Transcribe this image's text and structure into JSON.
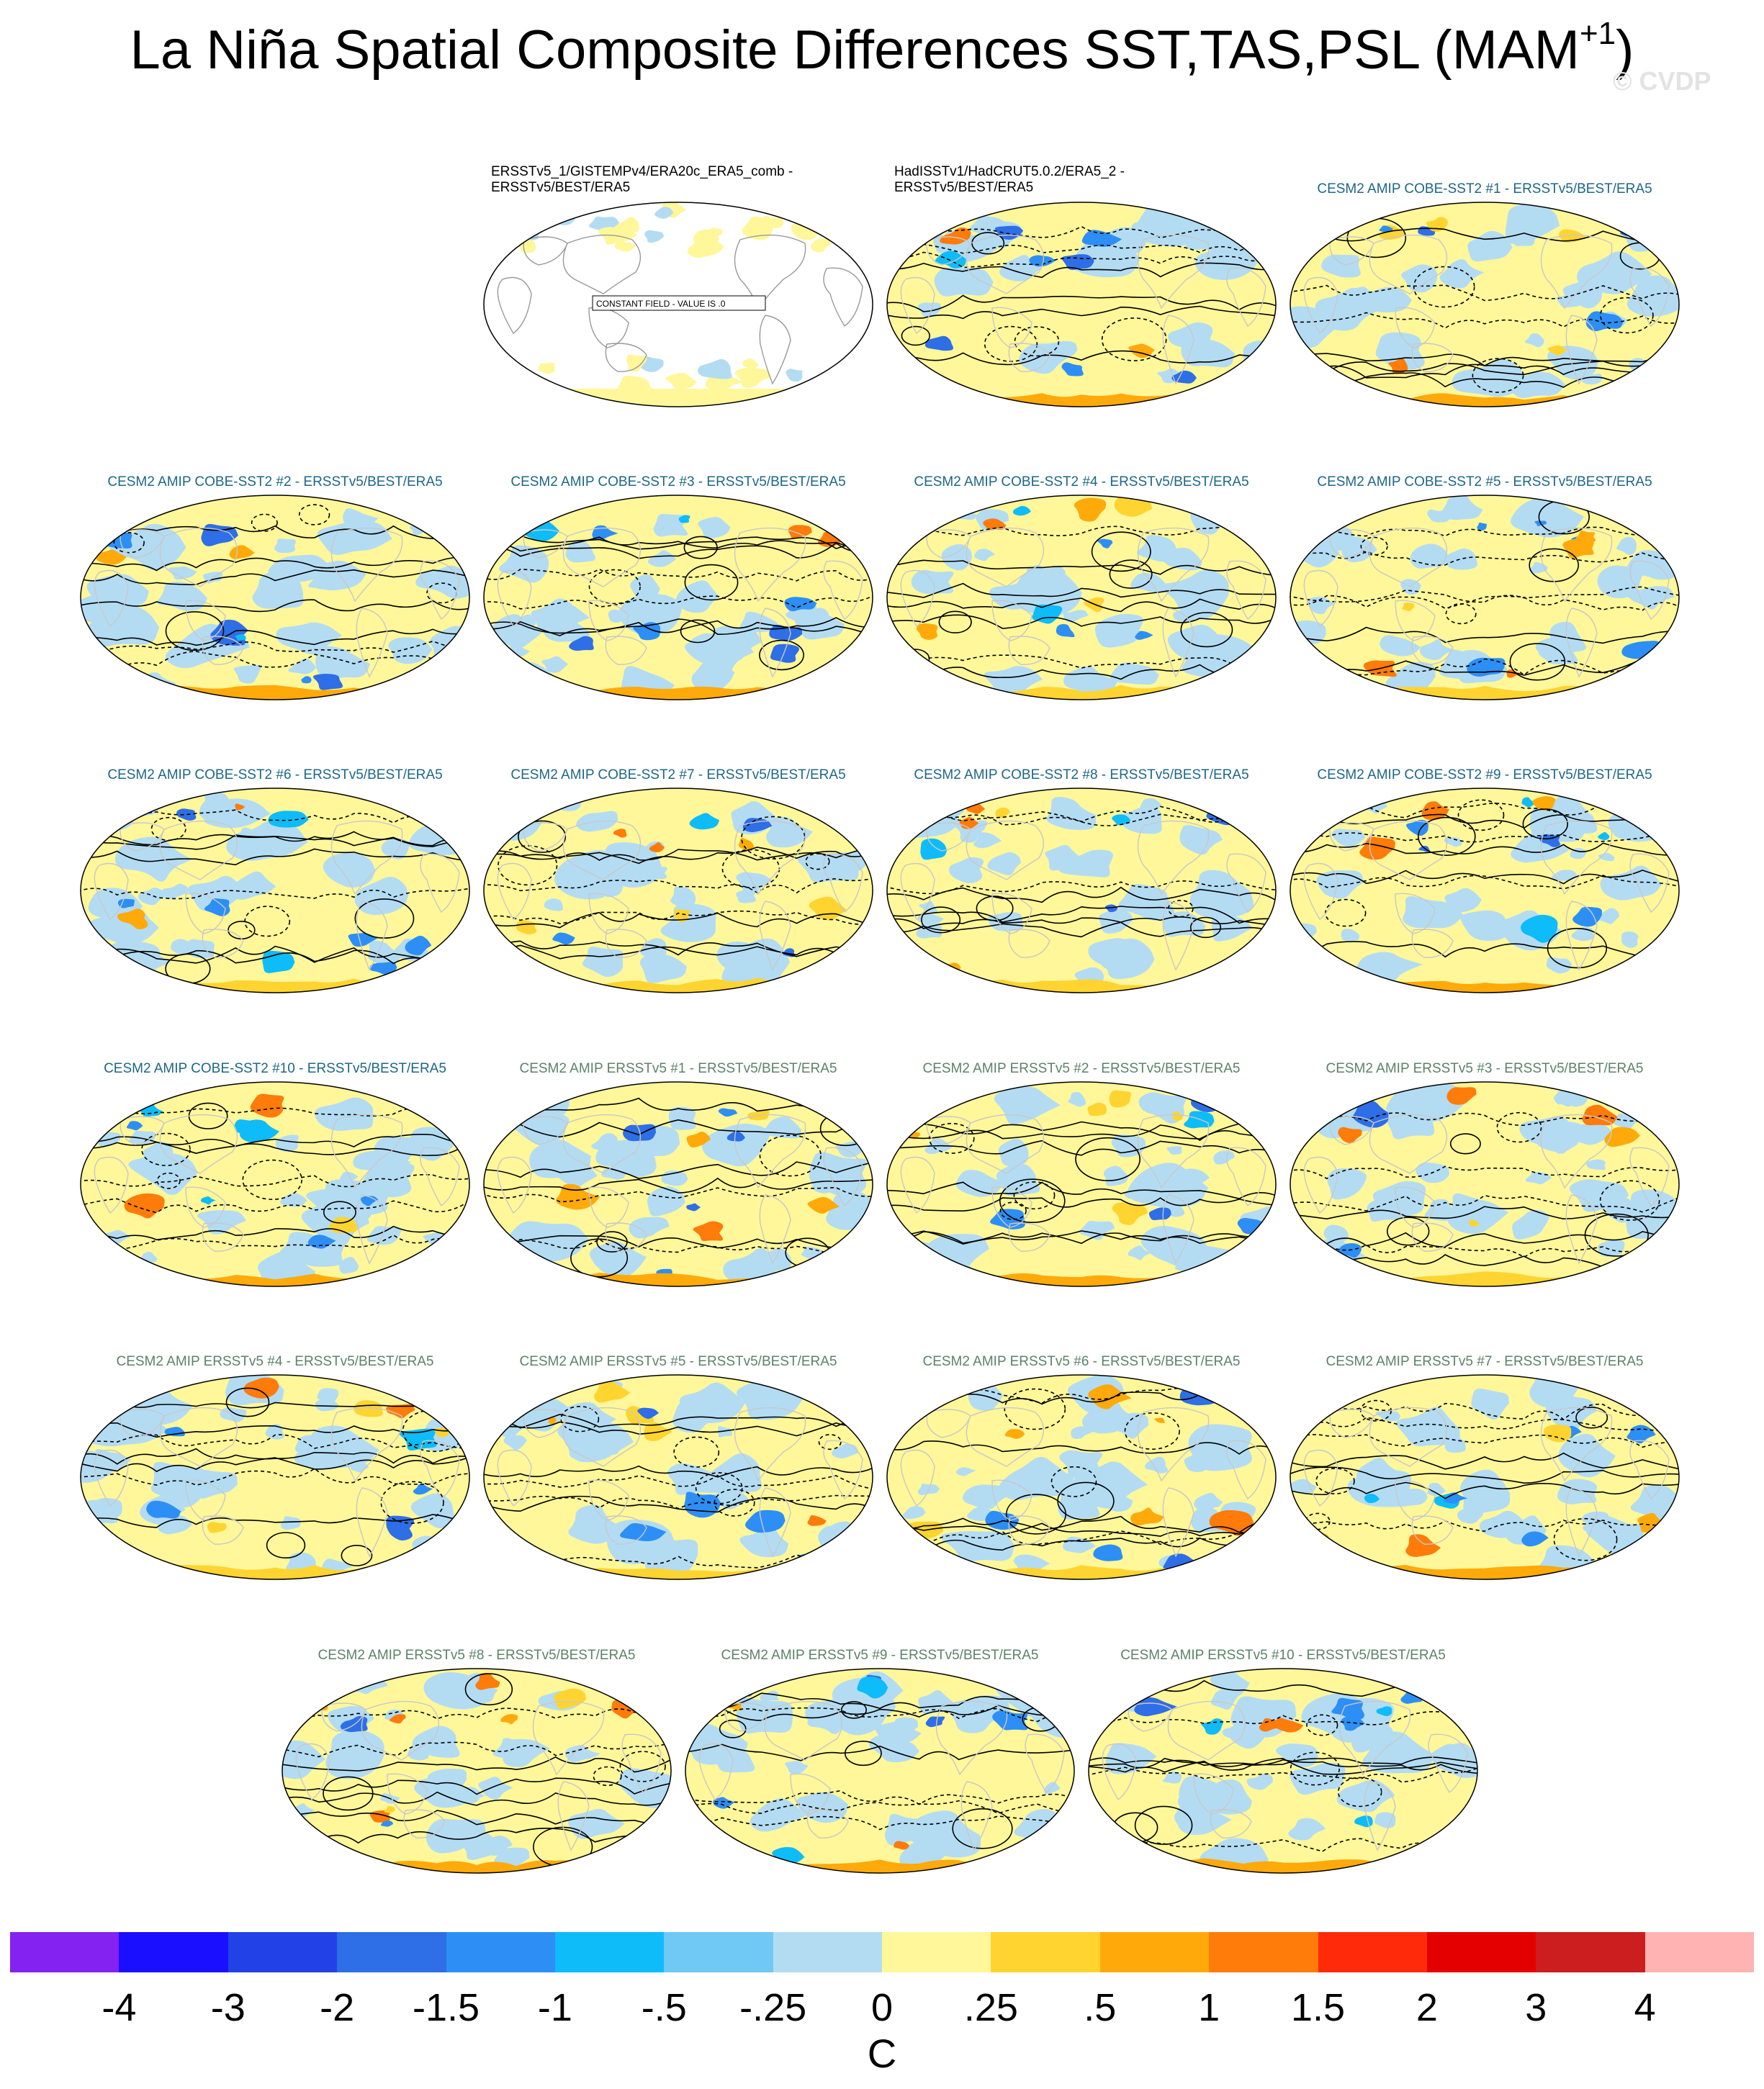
{
  "title": "La Niña Spatial Composite Differences SST,TAS,PSL (MAM",
  "title_superscript": "+1",
  "title_close": ")",
  "watermark": "© CVDP",
  "constant_field_label": "CONSTANT FIELD - VALUE IS .0",
  "units": "C",
  "colors": {
    "ocean_neutral_warm": "#fff79a",
    "ocean_neutral_cool": "#b3dcf3",
    "land_outline": "#c8c8c8",
    "contour": "#000000",
    "cobe_title": "#1d6786",
    "ersst_title": "#5c8268"
  },
  "colorbar": {
    "colors": [
      "#8422f2",
      "#1a10ff",
      "#2241e6",
      "#2e6ee6",
      "#2d8ff5",
      "#0ebcfa",
      "#70c8f4",
      "#b3dcf3",
      "#fff79a",
      "#ffd430",
      "#ffaa0a",
      "#ff7b0a",
      "#ff2a0a",
      "#e50000",
      "#cc1e1e",
      "#ffb3b3"
    ],
    "labels": [
      "-4",
      "-3",
      "-2",
      "-1.5",
      "-1",
      "-.5",
      "-.25",
      "0",
      ".25",
      ".5",
      "1",
      "1.5",
      "2",
      "3",
      "4"
    ]
  },
  "panels": [
    {
      "id": "obs1",
      "kind": "obs",
      "line1": "ERSSTv5_1/GISTEMPv4/ERA20c_ERA5_comb -",
      "line2": "ERSSTv5/BEST/ERA5",
      "constant": true
    },
    {
      "id": "obs2",
      "kind": "obs",
      "line1": "HadISSTv1/HadCRUT5.0.2/ERA5_2 -",
      "line2": "ERSSTv5/BEST/ERA5",
      "constant": false
    },
    {
      "id": "c1",
      "kind": "cobe",
      "label": "CESM2 AMIP COBE-SST2 #1 - ERSSTv5/BEST/ERA5"
    },
    {
      "id": "c2",
      "kind": "cobe",
      "label": "CESM2 AMIP COBE-SST2 #2 - ERSSTv5/BEST/ERA5"
    },
    {
      "id": "c3",
      "kind": "cobe",
      "label": "CESM2 AMIP COBE-SST2 #3 - ERSSTv5/BEST/ERA5"
    },
    {
      "id": "c4",
      "kind": "cobe",
      "label": "CESM2 AMIP COBE-SST2 #4 - ERSSTv5/BEST/ERA5"
    },
    {
      "id": "c5",
      "kind": "cobe",
      "label": "CESM2 AMIP COBE-SST2 #5 - ERSSTv5/BEST/ERA5"
    },
    {
      "id": "c6",
      "kind": "cobe",
      "label": "CESM2 AMIP COBE-SST2 #6 - ERSSTv5/BEST/ERA5"
    },
    {
      "id": "c7",
      "kind": "cobe",
      "label": "CESM2 AMIP COBE-SST2 #7 - ERSSTv5/BEST/ERA5"
    },
    {
      "id": "c8",
      "kind": "cobe",
      "label": "CESM2 AMIP COBE-SST2 #8 - ERSSTv5/BEST/ERA5"
    },
    {
      "id": "c9",
      "kind": "cobe",
      "label": "CESM2 AMIP COBE-SST2 #9 - ERSSTv5/BEST/ERA5"
    },
    {
      "id": "c10",
      "kind": "cobe",
      "label": "CESM2 AMIP COBE-SST2 #10 - ERSSTv5/BEST/ERA5"
    },
    {
      "id": "e1",
      "kind": "erss",
      "label": "CESM2 AMIP ERSSTv5 #1 - ERSSTv5/BEST/ERA5"
    },
    {
      "id": "e2",
      "kind": "erss",
      "label": "CESM2 AMIP ERSSTv5 #2 - ERSSTv5/BEST/ERA5"
    },
    {
      "id": "e3",
      "kind": "erss",
      "label": "CESM2 AMIP ERSSTv5 #3 - ERSSTv5/BEST/ERA5"
    },
    {
      "id": "e4",
      "kind": "erss",
      "label": "CESM2 AMIP ERSSTv5 #4 - ERSSTv5/BEST/ERA5"
    },
    {
      "id": "e5",
      "kind": "erss",
      "label": "CESM2 AMIP ERSSTv5 #5 - ERSSTv5/BEST/ERA5"
    },
    {
      "id": "e6",
      "kind": "erss",
      "label": "CESM2 AMIP ERSSTv5 #6 - ERSSTv5/BEST/ERA5"
    },
    {
      "id": "e7",
      "kind": "erss",
      "label": "CESM2 AMIP ERSSTv5 #7 - ERSSTv5/BEST/ERA5"
    },
    {
      "id": "e8",
      "kind": "erss",
      "label": "CESM2 AMIP ERSSTv5 #8 - ERSSTv5/BEST/ERA5"
    },
    {
      "id": "e9",
      "kind": "erss",
      "label": "CESM2 AMIP ERSSTv5 #9 - ERSSTv5/BEST/ERA5"
    },
    {
      "id": "e10",
      "kind": "erss",
      "label": "CESM2 AMIP ERSSTv5 #10 - ERSSTv5/BEST/ERA5"
    }
  ]
}
